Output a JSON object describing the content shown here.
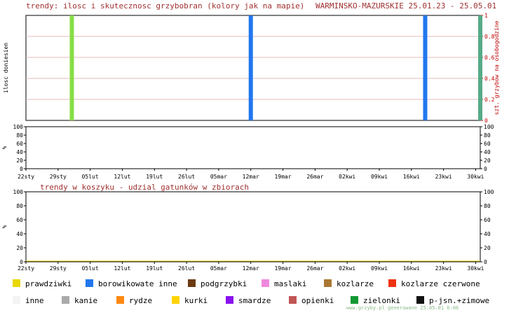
{
  "header": {
    "title": "trendy: ilosc i skutecznosc grzybobran (kolory jak na mapie)",
    "region_dates": "WARMINSKO-MAZURSKIE 25.01.23 - 25.05.01"
  },
  "second_title": "trendy w koszyku - udzial gatunków w zbiorach",
  "footer": "www.grzyby.pl generowane 25.05.01 6:06",
  "chart_data": [
    {
      "type": "bar",
      "ylabel": "ilosc doniesien",
      "y2label": "szt. grzybow na osobogodzine",
      "ylim": [
        0,
        1
      ],
      "y2lim": [
        0,
        1
      ],
      "y2ticks": [
        "0",
        "0.2",
        "0.4",
        "0.6",
        "0.8",
        "1"
      ],
      "x_start": "2023-01-22",
      "x_end": "2023-05-01",
      "xticks": [
        "22sty",
        "29sty",
        "05lut",
        "12lut",
        "19lut",
        "26lut",
        "05mar",
        "12mar",
        "19mar",
        "26mar",
        "02kwi",
        "09kwi",
        "16kwi",
        "23kwi",
        "30kwi"
      ],
      "grid": true,
      "bars": [
        {
          "date": "2023-02-01",
          "value": 1,
          "color": "#88dd44"
        },
        {
          "date": "2023-03-12",
          "value": 1,
          "color": "#2277ee"
        },
        {
          "date": "2023-04-19",
          "value": 1,
          "color": "#2277ee"
        },
        {
          "date": "2023-05-01",
          "value": 1,
          "color": "#55aa88"
        }
      ]
    },
    {
      "type": "area",
      "ylabel": "%",
      "ylim": [
        0,
        100
      ],
      "yticks": [
        "0",
        "20",
        "40",
        "60",
        "80",
        "100"
      ],
      "xticks": [],
      "series": []
    },
    {
      "type": "area",
      "title": "trendy w koszyku - udzial gatunków w zbiorach",
      "ylabel": "%",
      "ylim": [
        0,
        100
      ],
      "yticks": [
        "0",
        "20",
        "40",
        "60",
        "80",
        "100"
      ],
      "xticks": [
        "22sty",
        "29sty",
        "05lut",
        "12lut",
        "19lut",
        "26lut",
        "05mar",
        "12mar",
        "19mar",
        "26mar",
        "02kwi",
        "09kwi",
        "16kwi",
        "23kwi",
        "30kwi"
      ],
      "series": []
    }
  ],
  "legend": [
    {
      "label": "prawdziwki",
      "color": "#e8d800"
    },
    {
      "label": "borowikowate inne",
      "color": "#2277ee"
    },
    {
      "label": "podgrzybki",
      "color": "#6b3a10"
    },
    {
      "label": "maslaki",
      "color": "#ee88dd"
    },
    {
      "label": "kozlarze",
      "color": "#aa7733"
    },
    {
      "label": "kozlarze czerwone",
      "color": "#ee3311"
    },
    {
      "label": "inne",
      "color": "#f4f4f4"
    },
    {
      "label": "kanie",
      "color": "#aaaaaa"
    },
    {
      "label": "rydze",
      "color": "#ff8811"
    },
    {
      "label": "kurki",
      "color": "#ffd400"
    },
    {
      "label": "smardze",
      "color": "#8811ee"
    },
    {
      "label": "opienki",
      "color": "#c05555"
    },
    {
      "label": "zielonki",
      "color": "#119933"
    },
    {
      "label": "p-jsn.+zimowe",
      "color": "#111111"
    }
  ]
}
